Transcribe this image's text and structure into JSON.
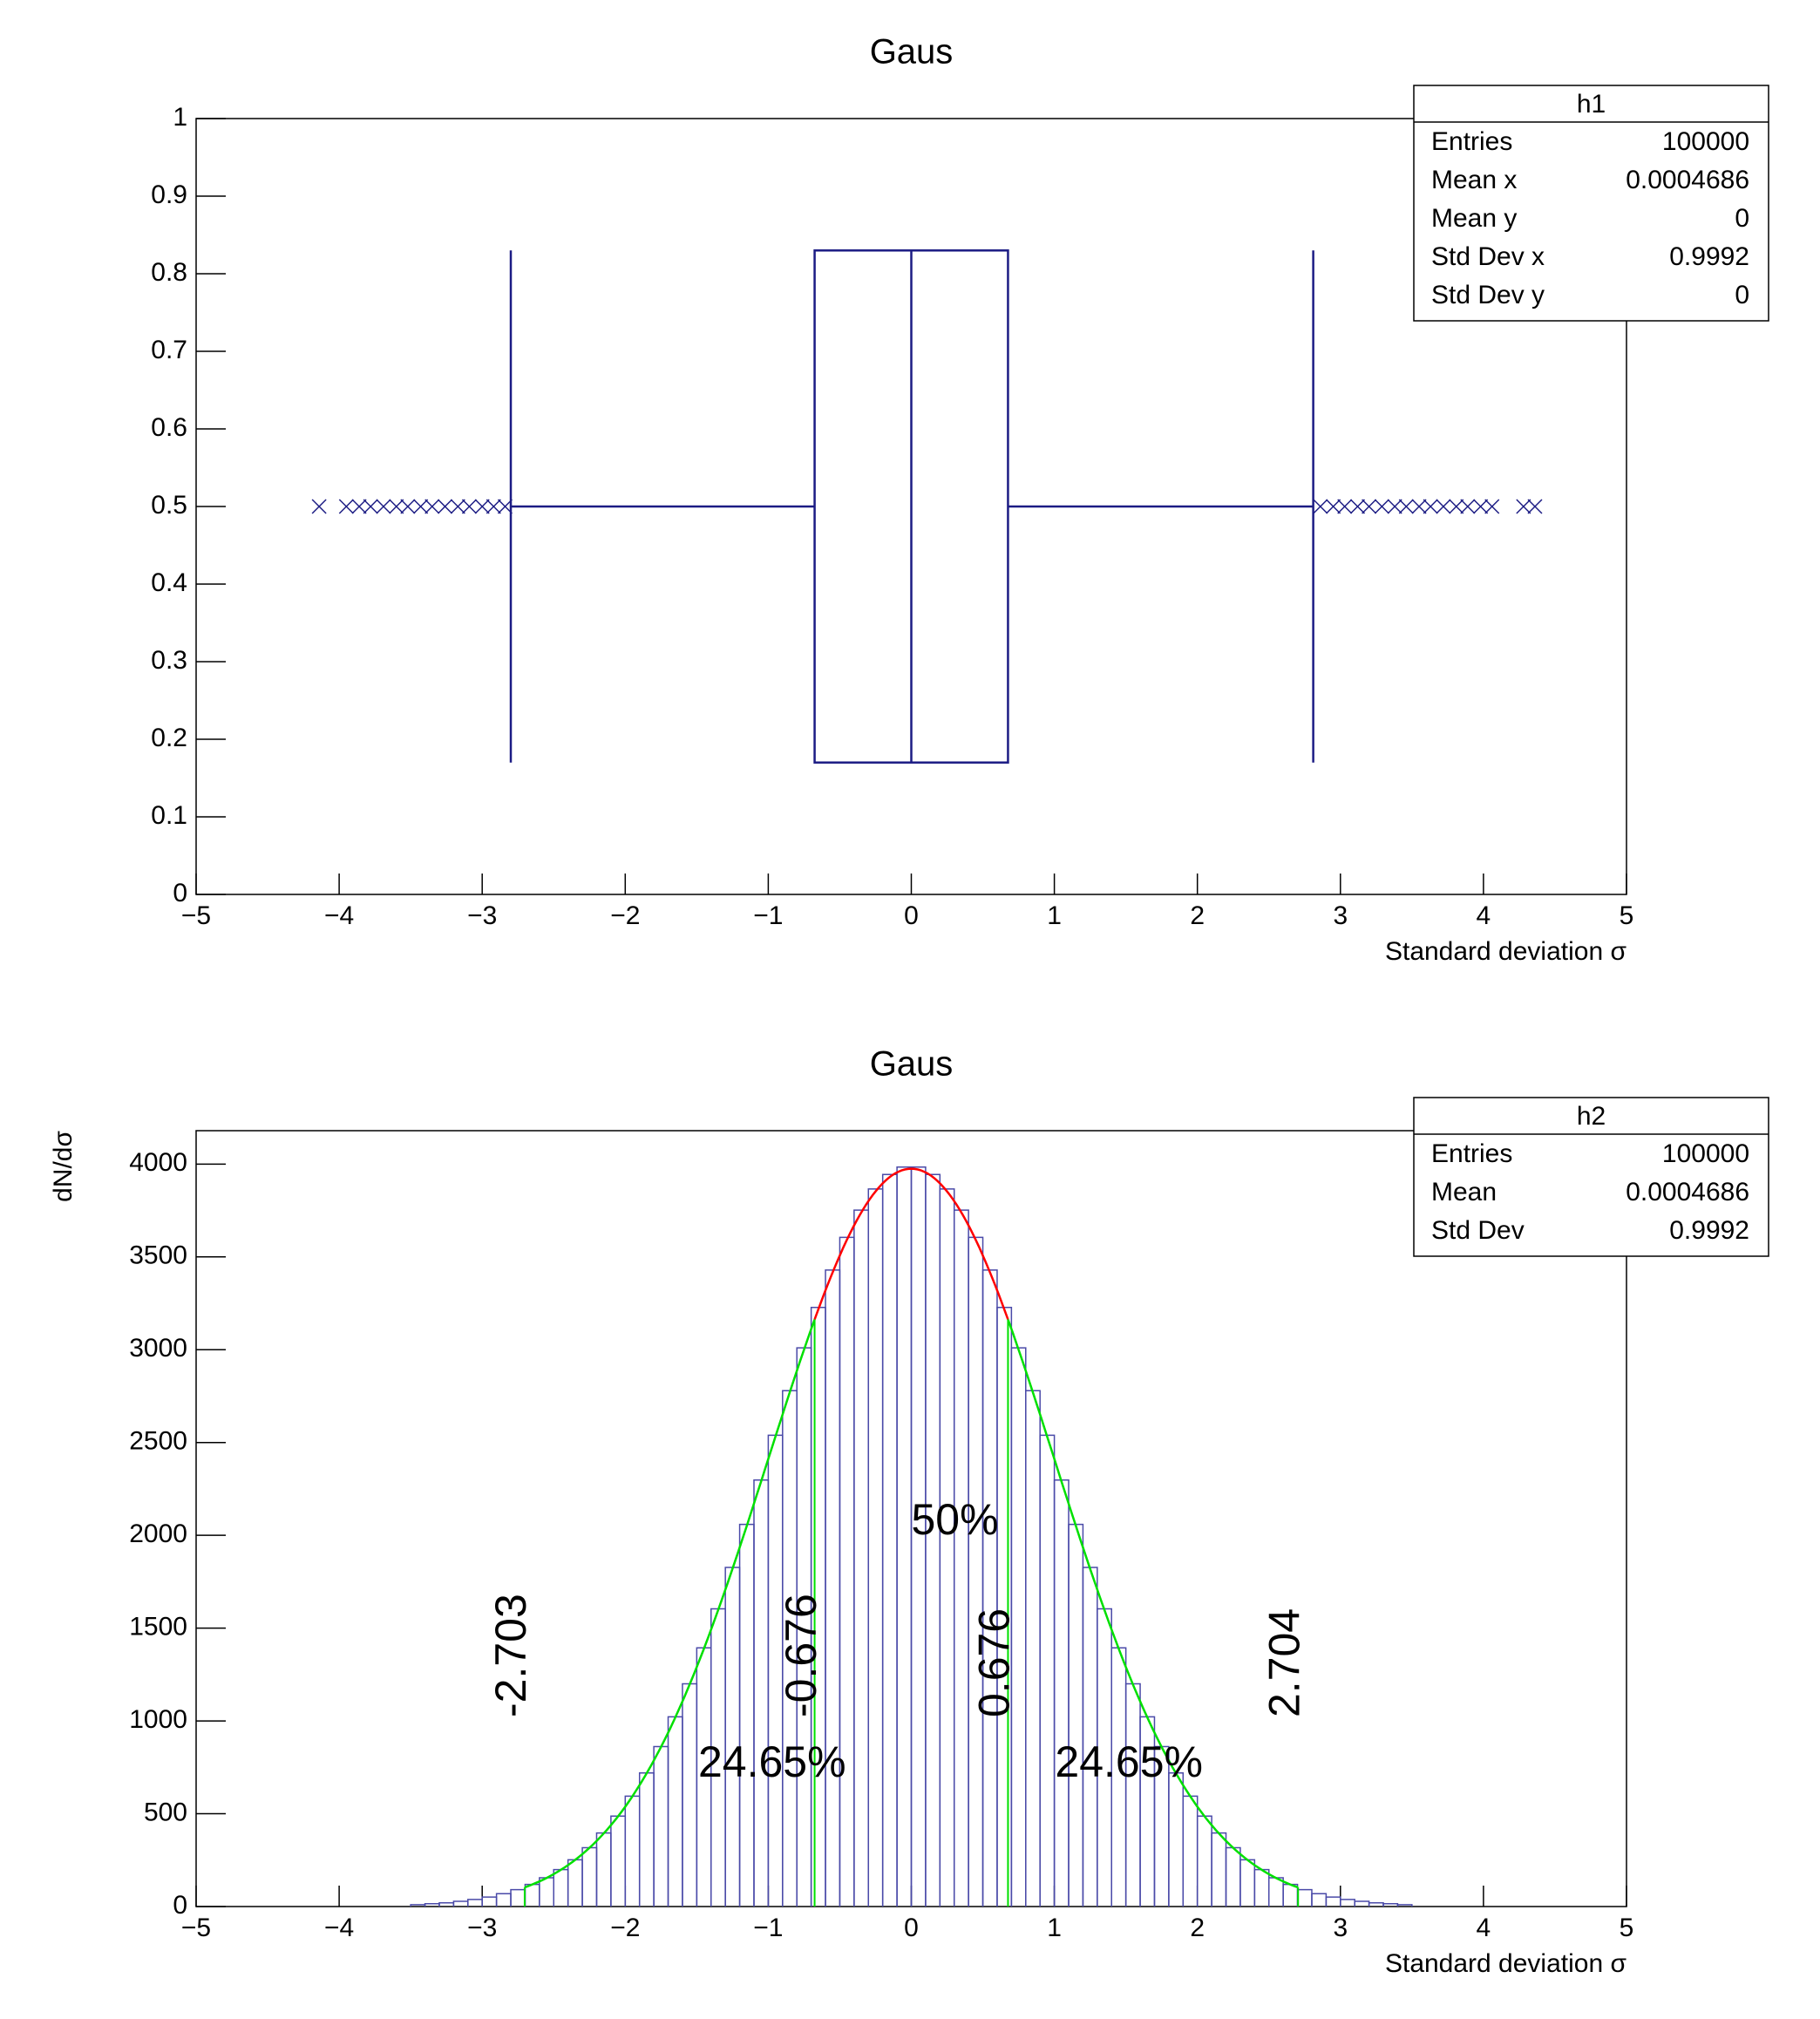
{
  "chart_data": [
    {
      "type": "box",
      "title": "Gaus",
      "xlabel": "Standard deviation   σ",
      "xlim": [
        -5,
        5
      ],
      "xticks": [
        {
          "value": -5,
          "label": "−5"
        },
        {
          "value": -4,
          "label": "−4"
        },
        {
          "value": -3,
          "label": "−3"
        },
        {
          "value": -2,
          "label": "−2"
        },
        {
          "value": -1,
          "label": "−1"
        },
        0,
        1,
        2,
        3,
        4,
        5
      ],
      "ylim": [
        0,
        1
      ],
      "yticks": [
        0,
        0.1,
        0.2,
        0.3,
        0.4,
        0.5,
        0.6,
        0.7,
        0.8,
        0.9,
        1
      ],
      "color": "#1c1c84",
      "box": {
        "whisker_low": -2.8,
        "q1": -0.676,
        "median": 0,
        "q3": 0.676,
        "whisker_high": 2.81
      },
      "outliers": [
        -4.14,
        -3.95,
        -3.86,
        -3.78,
        -3.69,
        -3.6,
        -3.52,
        -3.43,
        -3.35,
        -3.26,
        -3.17,
        -3.09,
        -3.0,
        -2.92,
        -2.84,
        2.86,
        2.95,
        3.03,
        3.12,
        3.2,
        3.29,
        3.38,
        3.46,
        3.55,
        3.63,
        3.72,
        3.81,
        3.89,
        3.98,
        4.06,
        4.28,
        4.36
      ],
      "stats": {
        "title": "h1",
        "labels": [
          "Entries",
          "Mean x",
          "Mean y",
          "Std Dev x",
          "Std Dev y"
        ],
        "values": [
          100000,
          0.0004686,
          0,
          0.9992,
          0
        ]
      }
    },
    {
      "type": "histogram",
      "title": "Gaus",
      "xlabel": "Standard deviation   σ",
      "ylabel": "dN/dσ",
      "xlim": [
        -5,
        5
      ],
      "xticks": [
        {
          "value": -5,
          "label": "−5"
        },
        {
          "value": -4,
          "label": "−4"
        },
        {
          "value": -3,
          "label": "−3"
        },
        {
          "value": -2,
          "label": "−2"
        },
        {
          "value": -1,
          "label": "−1"
        },
        0,
        1,
        2,
        3,
        4,
        5
      ],
      "ylim": [
        0,
        4180
      ],
      "yticks": [
        0,
        500,
        1000,
        1500,
        2000,
        2500,
        3000,
        3500,
        4000
      ],
      "color": "#4a4aa8",
      "bins": [
        -3.5,
        -3.4,
        -3.3,
        -3.2,
        -3.1,
        -3.0,
        -2.9,
        -2.8,
        -2.7,
        -2.6,
        -2.5,
        -2.4,
        -2.3,
        -2.2,
        -2.1,
        -2.0,
        -1.9,
        -1.8,
        -1.7,
        -1.6,
        -1.5,
        -1.4,
        -1.3,
        -1.2,
        -1.1,
        -1.0,
        -0.9,
        -0.8,
        -0.7,
        -0.6,
        -0.5,
        -0.4,
        -0.3,
        -0.2,
        -0.1,
        0.0,
        0.1,
        0.2,
        0.3,
        0.4,
        0.5,
        0.6,
        0.7,
        0.8,
        0.9,
        1.0,
        1.1,
        1.2,
        1.3,
        1.4,
        1.5,
        1.6,
        1.7,
        1.8,
        1.9,
        2.0,
        2.1,
        2.2,
        2.3,
        2.4,
        2.5,
        2.6,
        2.7,
        2.8,
        2.9,
        3.0,
        3.1,
        3.2,
        3.3,
        3.4,
        3.5
      ],
      "values": [
        10,
        15,
        20,
        28,
        38,
        51,
        69,
        91,
        119,
        155,
        199,
        252,
        317,
        396,
        487,
        595,
        720,
        862,
        1022,
        1200,
        1394,
        1604,
        1827,
        2059,
        2298,
        2539,
        2779,
        3010,
        3228,
        3429,
        3605,
        3752,
        3866,
        3944,
        3984,
        3984,
        3944,
        3866,
        3752,
        3605,
        3429,
        3228,
        3010,
        2779,
        2539,
        2298,
        2059,
        1827,
        1604,
        1394,
        1200,
        1022,
        862,
        720,
        595,
        487,
        396,
        317,
        252,
        199,
        155,
        119,
        91,
        69,
        51,
        38,
        28,
        20,
        15,
        10
      ],
      "fit": {
        "amplitude": 3975,
        "mean": 0,
        "sigma": 1,
        "center_color": "#ff0000",
        "tail_color": "#00e000"
      },
      "quantiles": [
        -2.703,
        -0.676,
        0.676,
        2.704
      ],
      "areas": {
        "values": [
          24.65,
          50,
          24.65
        ],
        "value_labels": [
          "24.65%",
          "50%",
          "24.65%"
        ]
      },
      "stats": {
        "title": "h2",
        "labels": [
          "Entries",
          "Mean",
          "Std Dev"
        ],
        "values": [
          100000,
          0.0004686,
          0.9992
        ]
      }
    }
  ]
}
